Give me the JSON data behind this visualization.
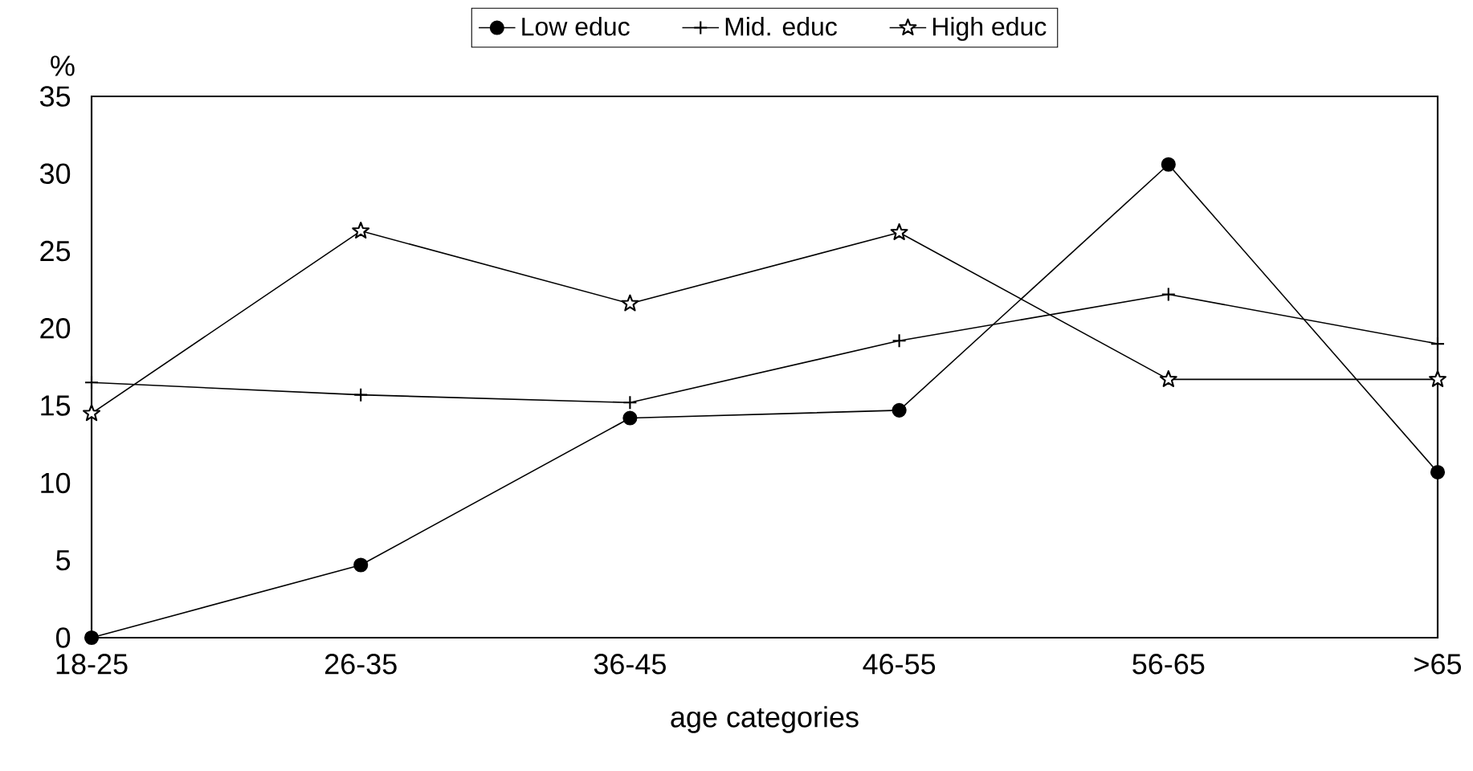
{
  "chart_data": {
    "type": "line",
    "ylabel": "%",
    "xlabel": "age categories",
    "categories": [
      "18-25",
      "26-35",
      "36-45",
      "46-55",
      "56-65",
      ">65"
    ],
    "series": [
      {
        "name": "Low educ",
        "color": "#000000",
        "marker": "circle",
        "values": [
          0,
          4.7,
          14.2,
          14.7,
          30.6,
          10.7
        ]
      },
      {
        "name": "Mid. educ",
        "color": "#000000",
        "marker": "cross",
        "values": [
          16.5,
          15.7,
          15.2,
          19.2,
          22.2,
          19.0
        ]
      },
      {
        "name": "High educ",
        "color": "#000000",
        "marker": "star",
        "values": [
          14.5,
          26.3,
          21.6,
          26.2,
          16.7,
          16.7
        ]
      }
    ],
    "ylim": [
      0,
      35
    ],
    "yticks": [
      0,
      5,
      10,
      15,
      20,
      25,
      30,
      35
    ],
    "grid": false,
    "legend": "top",
    "line_style": "solid"
  }
}
